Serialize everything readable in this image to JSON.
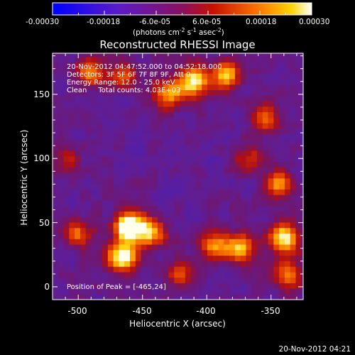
{
  "colorbar": {
    "tick_labels": [
      "-0.00030",
      "-0.00018",
      "-6.0e-05",
      "6.0e-05",
      "0.00018",
      "0.00030"
    ],
    "range": [
      -0.0003,
      0.0003
    ],
    "unit_prefix": "(photons cm",
    "unit_exp1": "-2",
    "unit_mid": " s",
    "unit_exp2": "-1",
    "unit_mid2": " asec",
    "unit_exp3": "-2",
    "unit_suffix": ")"
  },
  "chart_data": {
    "type": "heatmap",
    "title": "Reconstructed RHESSI Image",
    "xlabel": "Heliocentric X (arcsec)",
    "ylabel": "Heliocentric Y (arcsec)",
    "xlim": [
      -520,
      -325
    ],
    "ylim": [
      -10,
      182
    ],
    "xticks": [
      -500,
      -450,
      -400,
      -350
    ],
    "yticks": [
      0,
      50,
      100,
      150
    ],
    "xtick_labels": [
      "-500",
      "-450",
      "-400",
      "-350"
    ],
    "ytick_labels": [
      "0",
      "50",
      "100",
      "150"
    ],
    "colormap": "rhessi-blue-purple-red-yellow-white",
    "grid": false,
    "info_lines": [
      "20-Nov-2012 04:47:52.000 to 04:52:18.000",
      "Detectors: 3F 5F 6F 7F 8F 9F, Att 0",
      "Energy Range: 12.0 - 25.0 keV",
      "Clean     Total counts: 4.03E+03"
    ],
    "peak_annotation": "Position of Peak = [-465,24]",
    "peak_position": [
      -465,
      24
    ],
    "sources": [
      {
        "x": -465,
        "y": 24,
        "intensity": 1.0
      },
      {
        "x": -460,
        "y": 48,
        "intensity": 0.92
      },
      {
        "x": -443,
        "y": 42,
        "intensity": 0.72
      },
      {
        "x": -410,
        "y": 160,
        "intensity": 0.9
      },
      {
        "x": -430,
        "y": 150,
        "intensity": 0.7
      },
      {
        "x": -385,
        "y": 165,
        "intensity": 0.75
      },
      {
        "x": -375,
        "y": 30,
        "intensity": 0.78
      },
      {
        "x": -395,
        "y": 32,
        "intensity": 0.62
      },
      {
        "x": -340,
        "y": 38,
        "intensity": 0.88
      },
      {
        "x": -345,
        "y": 80,
        "intensity": 0.66
      },
      {
        "x": -337,
        "y": 10,
        "intensity": 0.6
      },
      {
        "x": -490,
        "y": 168,
        "intensity": 0.62
      },
      {
        "x": -355,
        "y": 132,
        "intensity": 0.55
      },
      {
        "x": -500,
        "y": 42,
        "intensity": 0.5
      },
      {
        "x": -465,
        "y": 165,
        "intensity": 0.5
      },
      {
        "x": -368,
        "y": 100,
        "intensity": 0.42
      },
      {
        "x": -420,
        "y": 10,
        "intensity": 0.45
      },
      {
        "x": -510,
        "y": 100,
        "intensity": 0.35
      }
    ]
  },
  "footer": {
    "timestamp": "20-Nov-2012 04:21"
  }
}
